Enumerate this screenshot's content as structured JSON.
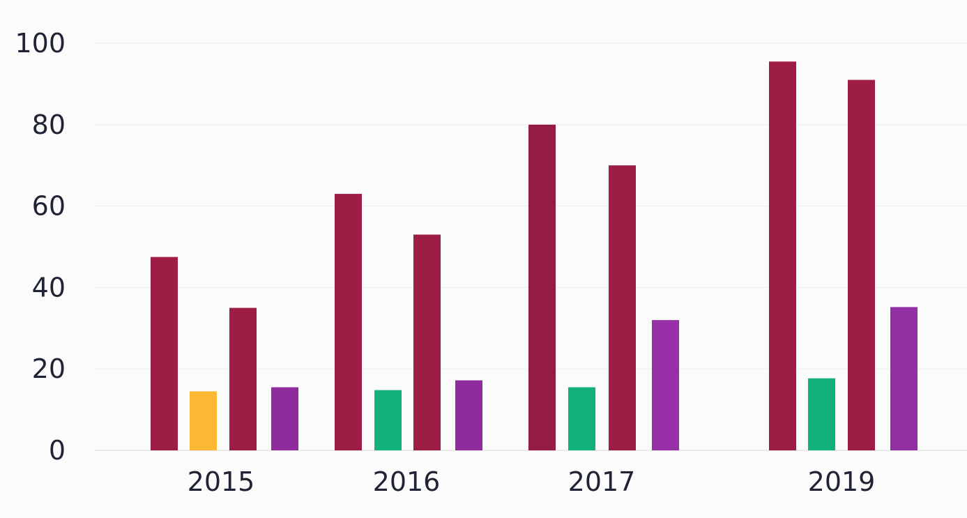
{
  "chart_data": {
    "type": "bar",
    "title": "",
    "xlabel": "",
    "ylabel": "",
    "ylim": [
      0,
      100
    ],
    "yticks": [
      0,
      20,
      40,
      60,
      80,
      100
    ],
    "grid": true,
    "legend": "none",
    "groups": [
      {
        "label": "2015",
        "bars": [
          {
            "value": 47.5,
            "color": "#9d1d44"
          },
          {
            "value": 14.5,
            "color": "#fbb832"
          },
          {
            "value": 35,
            "color": "#9d1d44"
          },
          {
            "value": 15.5,
            "color": "#8e2c9c"
          }
        ]
      },
      {
        "label": "2016",
        "bars": [
          {
            "value": 63,
            "color": "#9d1d44"
          },
          {
            "value": 14.8,
            "color": "#12b07c"
          },
          {
            "value": 53,
            "color": "#9d1d44"
          },
          {
            "value": 17.2,
            "color": "#8e2c9c"
          }
        ]
      },
      {
        "label": "2017",
        "bars": [
          {
            "value": 80,
            "color": "#941b45"
          },
          {
            "value": 15.5,
            "color": "#12b07c"
          },
          {
            "value": 70,
            "color": "#9d1d44"
          },
          {
            "value": 32,
            "color": "#9730a6"
          }
        ]
      },
      {
        "label": "2019",
        "bars": [
          {
            "value": 95.5,
            "color": "#9d1d44"
          },
          {
            "value": 17.7,
            "color": "#12b07c"
          },
          {
            "value": 91,
            "color": "#9d1d44"
          },
          {
            "value": 35.2,
            "color": "#9130a3"
          }
        ]
      }
    ]
  }
}
